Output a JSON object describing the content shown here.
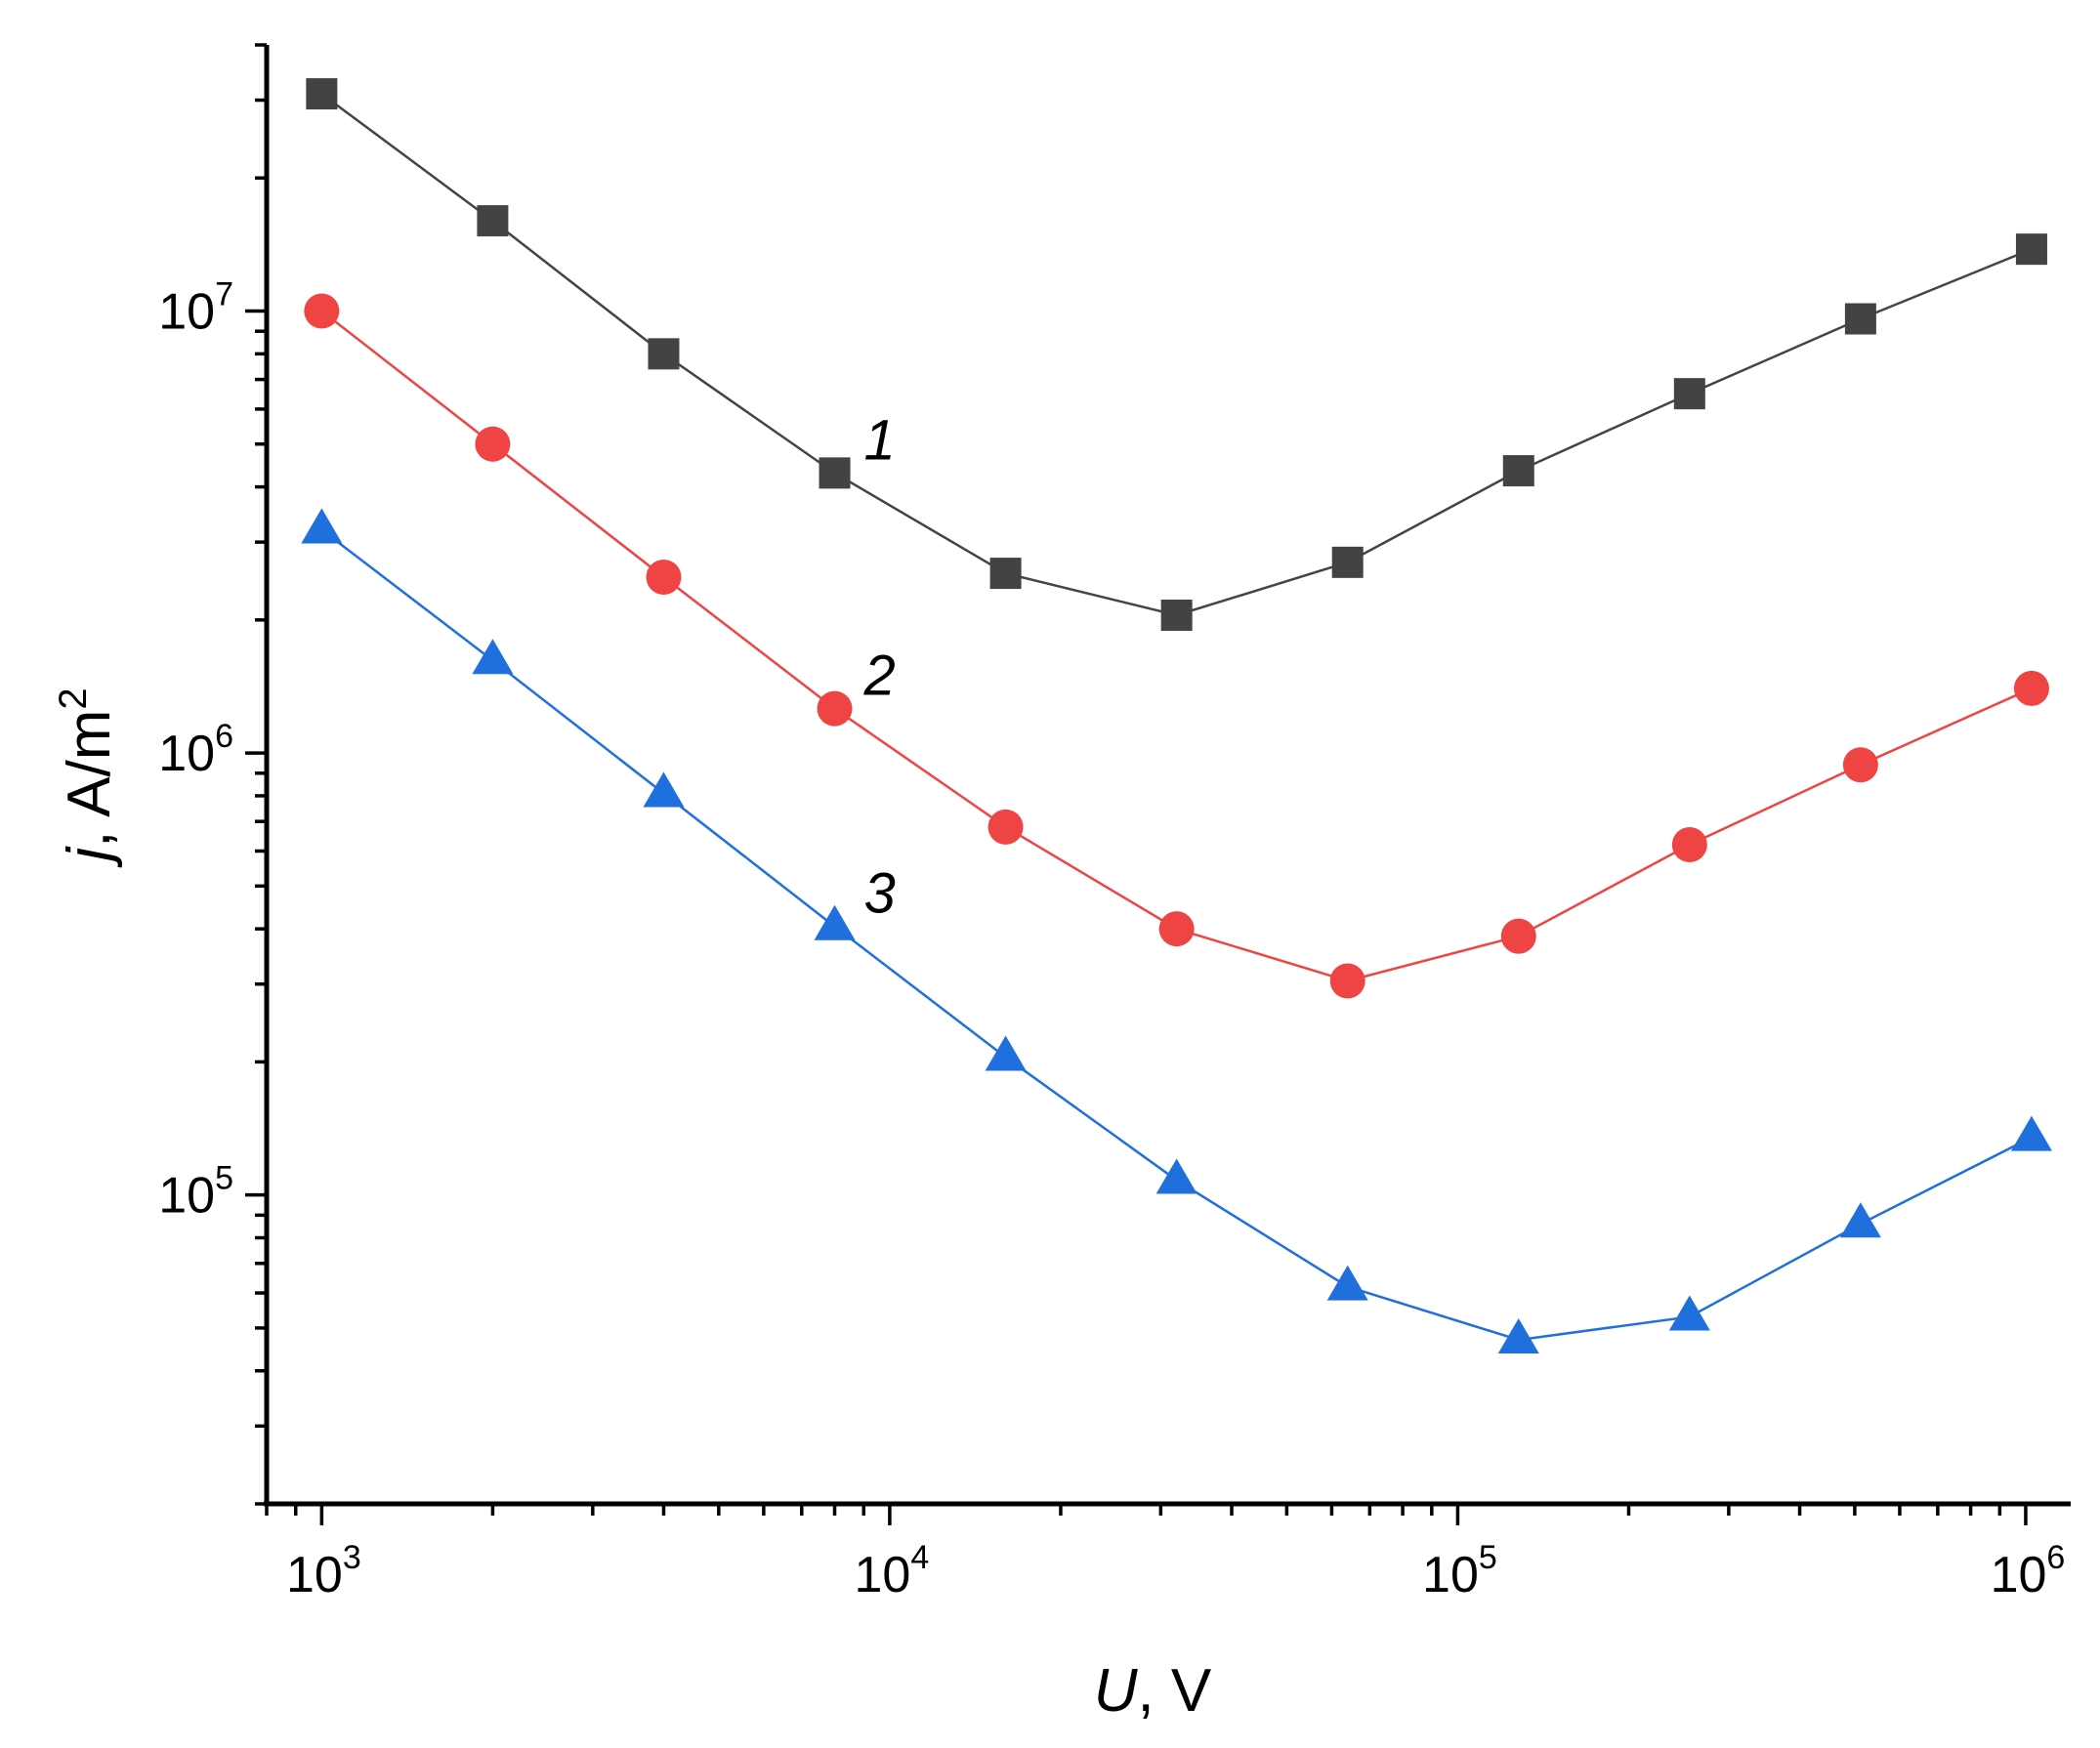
{
  "chart_data": {
    "type": "line",
    "title": "",
    "xscale": "log",
    "yscale": "log",
    "xlim": [
      800,
      1200000
    ],
    "ylim": [
      20000,
      40000000
    ],
    "xlabel": {
      "var": "U",
      "unit": ", V"
    },
    "ylabel": {
      "var": "j",
      "unit": ", A/m",
      "sup": "2"
    },
    "x_tick_labels": [
      {
        "value": 1000,
        "base": "10",
        "exp": "3"
      },
      {
        "value": 10000,
        "base": "10",
        "exp": "4"
      },
      {
        "value": 100000,
        "base": "10",
        "exp": "5"
      },
      {
        "value": 1000000,
        "base": "10",
        "exp": "6"
      }
    ],
    "y_tick_labels": [
      {
        "value": 100000,
        "base": "10",
        "exp": "5"
      },
      {
        "value": 1000000,
        "base": "10",
        "exp": "6"
      },
      {
        "value": 10000000,
        "base": "10",
        "exp": "7"
      }
    ],
    "x": [
      1000,
      2000,
      4000,
      8000,
      16000,
      32000,
      64000,
      128000,
      256000,
      512000,
      1024000
    ],
    "series": [
      {
        "name": "1",
        "label_at_index": 3,
        "marker": "square",
        "marker_color": "#434343",
        "line_color": "#444444",
        "values": [
          31000000,
          16000000,
          8000000,
          4300000,
          2550000,
          2050000,
          2700000,
          4350000,
          6500000,
          9600000,
          13800000
        ]
      },
      {
        "name": "2",
        "label_at_index": 3,
        "marker": "circle",
        "marker_color": "#ef4444",
        "line_color": "#ef4444",
        "values": [
          10000000,
          5000000,
          2500000,
          1260000,
          680000,
          400000,
          305000,
          385000,
          620000,
          940000,
          1400000
        ]
      },
      {
        "name": "3",
        "label_at_index": 3,
        "marker": "triangle",
        "marker_color": "#1f6fdc",
        "line_color": "#1f6fdc",
        "values": [
          3200000,
          1620000,
          810000,
          405000,
          205000,
          108000,
          62000,
          47000,
          53000,
          86000,
          135000
        ]
      }
    ]
  }
}
